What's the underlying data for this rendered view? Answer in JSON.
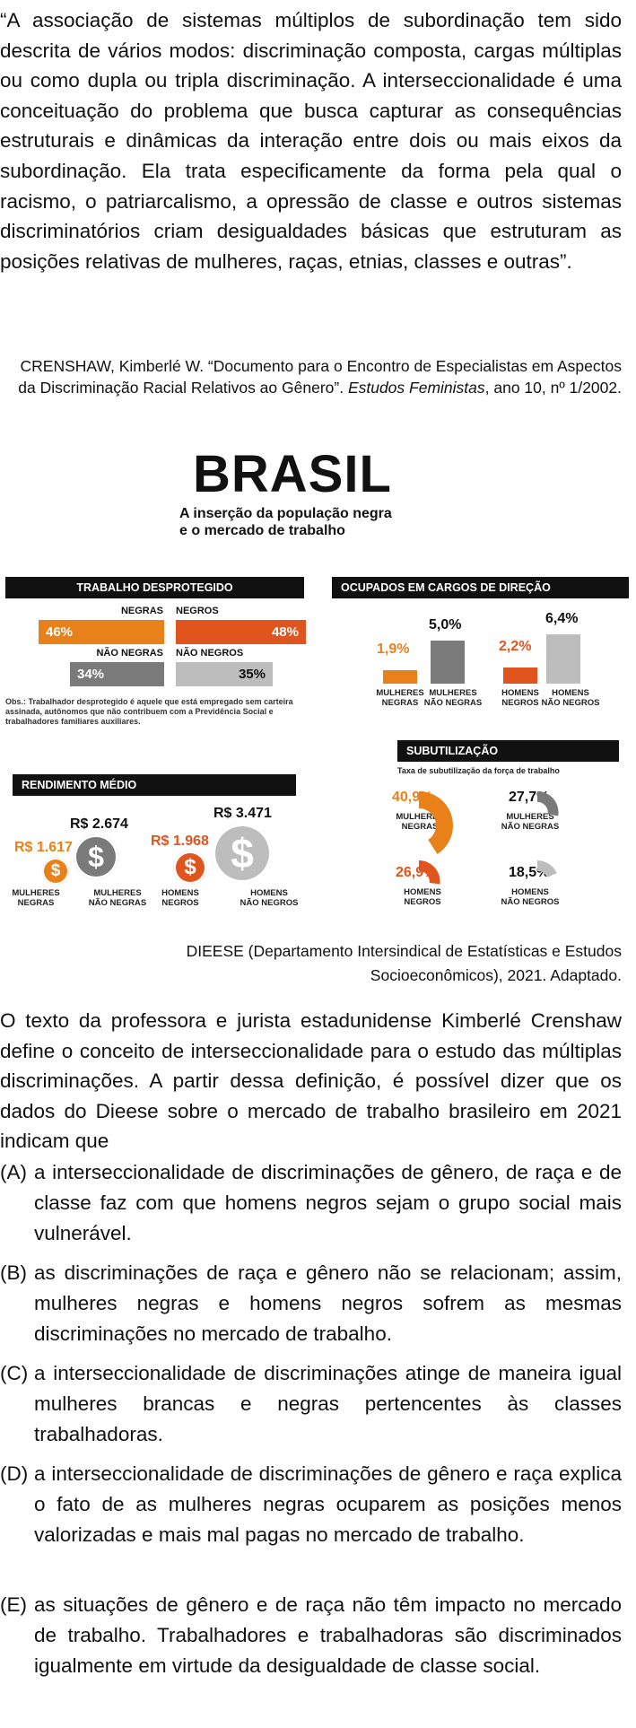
{
  "quote": "“A associação de sistemas múltiplos de subordinação tem sido descrita de vários modos: discriminação composta, cargas múltiplas ou como dupla ou tripla discriminação. A interseccionalidade é uma conceituação do problema que busca capturar as consequências estruturais e dinâmicas da interação entre dois ou mais eixos da subordinação. Ela trata especificamente da forma pela qual o racismo, o patriarcalismo, a opressão de classe e outros sistemas discriminatórios criam desigualdades básicas que estruturam as posições relativas de mulheres, raças, etnias, classes e outras”.",
  "citation": {
    "pre": "CRENSHAW, Kimberlé W. “Documento para o Encontro de Especialistas em Aspectos da Discriminação Racial Relativos ao Gênero”. ",
    "journal": "Estudos Feministas",
    "post": ", ano 10, nº 1/2002."
  },
  "infographic": {
    "title": "BRASIL",
    "subtitle_line1": "A inserção da população negra",
    "subtitle_line2": "e o mercado de trabalho",
    "colors": {
      "orange": "#e8811a",
      "red_orange": "#e0541d",
      "dark_gray": "#7a7a7a",
      "light_gray": "#bdbdbd",
      "black": "#111111"
    },
    "trabalho": {
      "title": "TRABALHO DESPROTEGIDO",
      "negras": {
        "label": "NEGRAS",
        "value": "46%"
      },
      "negros": {
        "label": "NEGROS",
        "value": "48%"
      },
      "nao_negras": {
        "label": "NÃO NEGRAS",
        "value": "34%"
      },
      "nao_negros": {
        "label": "NÃO NEGROS",
        "value": "35%"
      },
      "obs": "Obs.: Trabalhador desprotegido é aquele que está empregado sem carteira assinada, autônomos que não contribuem com a Previdência Social e trabalhadores familiares auxiliares."
    },
    "cargos": {
      "title": "OCUPADOS EM CARGOS DE DIREÇÃO",
      "bars": [
        {
          "value": "1,9%",
          "l1": "MULHERES",
          "l2": "NEGRAS"
        },
        {
          "value": "5,0%",
          "l1": "MULHERES",
          "l2": "NÃO NEGRAS"
        },
        {
          "value": "2,2%",
          "l1": "HOMENS",
          "l2": "NEGROS"
        },
        {
          "value": "6,4%",
          "l1": "HOMENS",
          "l2": "NÃO NEGROS"
        }
      ]
    },
    "rendimento": {
      "title": "RENDIMENTO MÉDIO",
      "coin_symbol": "$",
      "items": [
        {
          "value": "R$ 1.617",
          "l1": "MULHERES",
          "l2": "NEGRAS"
        },
        {
          "value": "R$ 2.674",
          "l1": "MULHERES",
          "l2": "NÃO NEGRAS"
        },
        {
          "value": "R$ 1.968",
          "l1": "HOMENS",
          "l2": "NEGROS"
        },
        {
          "value": "R$ 3.471",
          "l1": "HOMENS",
          "l2": "NÃO NEGROS"
        }
      ]
    },
    "subutilizacao": {
      "title": "SUBUTILIZAÇÃO",
      "caption": "Taxa de subutilização da força de trabalho",
      "items": [
        {
          "value": "40,9%",
          "l1": "MULHERES",
          "l2": "NEGRAS"
        },
        {
          "value": "27,7%",
          "l1": "MULHERES",
          "l2": "NÃO NEGRAS"
        },
        {
          "value": "26,9%",
          "l1": "HOMENS",
          "l2": "NEGROS"
        },
        {
          "value": "18,5%",
          "l1": "HOMENS",
          "l2": "NÃO NEGROS"
        }
      ]
    }
  },
  "source_line1": "DIEESE (Departamento Intersindical de Estatísticas e Estudos",
  "source_line2": "Socioeconômicos), 2021. Adaptado.",
  "question": "O texto da professora e jurista estadunidense Kimberlé Crenshaw define o conceito de interseccionalidade para o estudo das múltiplas discriminações. A partir dessa definição, é possível dizer que os dados do Dieese sobre o mercado de trabalho brasileiro em 2021 indicam que",
  "options": [
    {
      "letter": "(A)",
      "text": "a interseccionalidade de discriminações de gênero, de raça e de classe faz com que homens negros sejam o grupo social mais vulnerável."
    },
    {
      "letter": "(B)",
      "text": "as discriminações de raça e gênero não se relacionam; assim, mulheres negras e homens negros sofrem as mesmas discriminações no mercado de trabalho."
    },
    {
      "letter": "(C)",
      "text": "a interseccionalidade de discriminações atinge de maneira igual mulheres brancas e negras pertencentes às classes trabalhadoras."
    },
    {
      "letter": "(D)",
      "text": "a interseccionalidade de discriminações de gênero e raça explica o fato de as mulheres negras ocuparem as posições menos valorizadas e mais mal pagas no mercado de trabalho."
    },
    {
      "letter": "(E)",
      "text": "as situações de gênero e de raça não têm impacto no mercado de trabalho. Trabalhadores e trabalhadoras são discriminados igualmente em virtude da desigualdade de classe social."
    }
  ]
}
